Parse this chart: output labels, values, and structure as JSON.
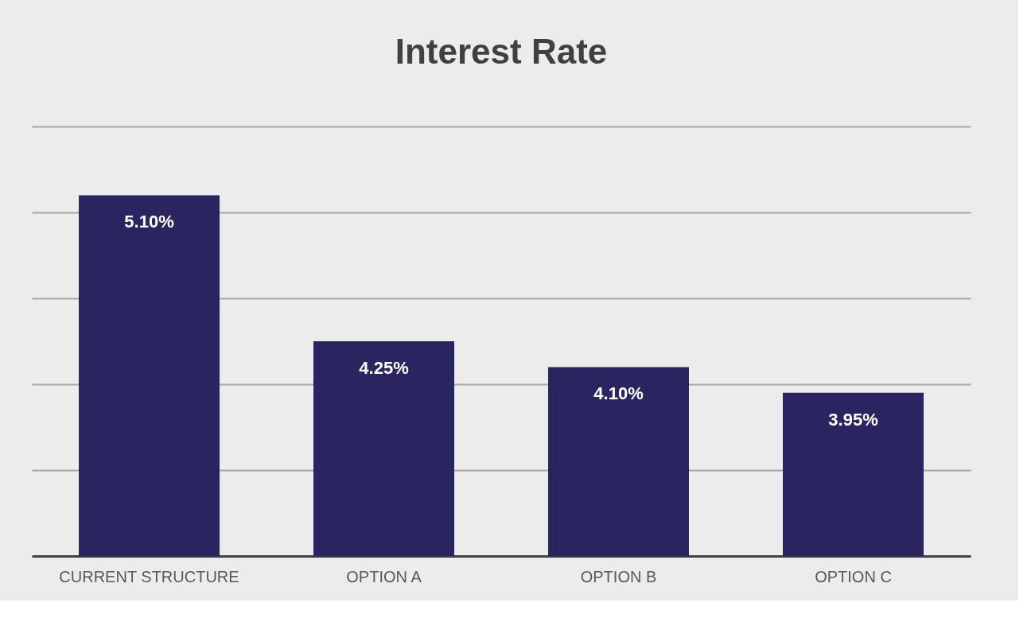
{
  "chart_data": {
    "type": "bar",
    "title": "Interest Rate",
    "categories": [
      "CURRENT STRUCTURE",
      "OPTION A",
      "OPTION B",
      "OPTION C"
    ],
    "values": [
      5.1,
      4.25,
      4.1,
      3.95
    ],
    "value_labels": [
      "5.10%",
      "4.25%",
      "4.10%",
      "3.95%"
    ],
    "color": "#2a2560",
    "ylim": [
      3,
      5.5
    ],
    "yticks": [
      {
        "value": 3,
        "label": null
      },
      {
        "value": 3.5,
        "label": null
      },
      {
        "value": 4,
        "label": null
      },
      {
        "value": 4.5,
        "label": null
      },
      {
        "value": 5,
        "label": null
      },
      {
        "value": 5.5,
        "label": null
      }
    ],
    "grid": "y",
    "tick_labels": "x"
  }
}
